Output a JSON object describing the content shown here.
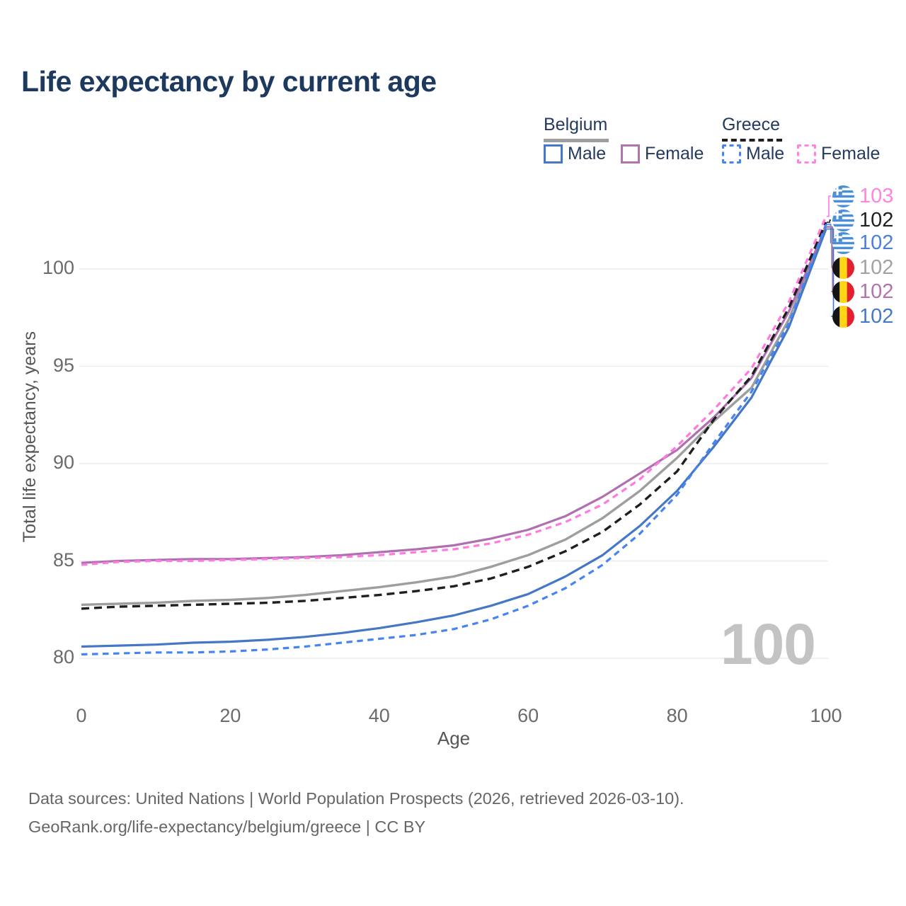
{
  "title": "Life expectancy by current age",
  "legend": {
    "groups": [
      {
        "label": "Belgium",
        "line_style": "solid",
        "color": "#9e9e9e"
      },
      {
        "label": "Greece",
        "line_style": "dashed",
        "color": "#1f1f1f"
      }
    ],
    "items": [
      {
        "label": "Male",
        "country": "Belgium",
        "color": "#4477c5",
        "dashed": false
      },
      {
        "label": "Female",
        "country": "Belgium",
        "color": "#b273ae",
        "dashed": false
      },
      {
        "label": "Male",
        "country": "Greece",
        "color": "#4584f2",
        "dashed": true
      },
      {
        "label": "Female",
        "country": "Greece",
        "color": "#ff85e0",
        "dashed": true
      }
    ]
  },
  "watermark_age": "100",
  "footer": {
    "line1": "Data sources: United Nations | World Population Prospects (2026, retrieved 2026-03-10).",
    "line2": "GeoRank.org/life-expectancy/belgium/greece | CC BY"
  },
  "chart_data": {
    "type": "line",
    "title": "Life expectancy by current age",
    "xlabel": "Age",
    "ylabel": "Total life expectancy, years",
    "x_ticks": [
      0,
      20,
      40,
      60,
      80,
      100
    ],
    "y_ticks": [
      80,
      85,
      90,
      95,
      100
    ],
    "xlim": [
      0,
      100
    ],
    "ylim": [
      79,
      103.5
    ],
    "grid": "horizontal",
    "legend_position": "top-right",
    "x": [
      0,
      5,
      10,
      15,
      20,
      25,
      30,
      35,
      40,
      45,
      50,
      55,
      60,
      65,
      70,
      75,
      80,
      85,
      90,
      95,
      100
    ],
    "series": [
      {
        "name": "Belgium",
        "country": "Belgium",
        "sex": "Total",
        "color": "#9e9e9e",
        "dashed": false,
        "values": [
          82.75,
          82.8,
          82.85,
          82.95,
          83.0,
          83.1,
          83.25,
          83.45,
          83.65,
          83.9,
          84.2,
          84.7,
          85.3,
          86.1,
          87.2,
          88.6,
          90.3,
          92.2,
          93.9,
          97.4,
          102.2
        ]
      },
      {
        "name": "Belgium Female",
        "country": "Belgium",
        "sex": "Female",
        "color": "#b06fb0",
        "dashed": false,
        "values": [
          84.9,
          85.0,
          85.05,
          85.1,
          85.1,
          85.15,
          85.2,
          85.3,
          85.45,
          85.6,
          85.8,
          86.15,
          86.6,
          87.3,
          88.3,
          89.5,
          90.7,
          92.4,
          94.4,
          97.8,
          102.15
        ]
      },
      {
        "name": "Belgium Male",
        "country": "Belgium",
        "sex": "Male",
        "color": "#4477c5",
        "dashed": false,
        "values": [
          80.6,
          80.65,
          80.7,
          80.8,
          80.85,
          80.95,
          81.1,
          81.3,
          81.55,
          81.85,
          82.2,
          82.7,
          83.3,
          84.2,
          85.3,
          86.8,
          88.6,
          90.9,
          93.4,
          97.0,
          102.05
        ]
      },
      {
        "name": "Greece",
        "country": "Greece",
        "sex": "Total",
        "color": "#1f1f1f",
        "dashed": true,
        "values": [
          82.55,
          82.65,
          82.7,
          82.75,
          82.8,
          82.85,
          82.95,
          83.1,
          83.25,
          83.45,
          83.7,
          84.1,
          84.7,
          85.5,
          86.5,
          87.9,
          89.6,
          92.3,
          94.5,
          98.0,
          102.4
        ]
      },
      {
        "name": "Greece Female",
        "country": "Greece",
        "sex": "Female",
        "color": "#ff7ade",
        "dashed": true,
        "values": [
          84.8,
          84.95,
          85.0,
          85.0,
          85.05,
          85.1,
          85.15,
          85.2,
          85.3,
          85.45,
          85.6,
          85.9,
          86.35,
          87.0,
          87.9,
          89.2,
          90.9,
          92.8,
          94.9,
          98.3,
          102.7
        ]
      },
      {
        "name": "Greece Male",
        "country": "Greece",
        "sex": "Male",
        "color": "#4584f2",
        "dashed": true,
        "values": [
          80.2,
          80.25,
          80.3,
          80.3,
          80.35,
          80.45,
          80.6,
          80.8,
          81.0,
          81.2,
          81.5,
          82.0,
          82.7,
          83.6,
          84.8,
          86.4,
          88.4,
          91.1,
          93.7,
          97.2,
          102.3
        ]
      }
    ],
    "end_labels": [
      {
        "series": "Greece Female",
        "flag": "greece",
        "text": "103",
        "color": "#ff85e0"
      },
      {
        "series": "Greece",
        "flag": "greece",
        "text": "102",
        "color": "#212121"
      },
      {
        "series": "Greece Male",
        "flag": "greece",
        "text": "102",
        "color": "#4c80d8"
      },
      {
        "series": "Belgium",
        "flag": "belgium",
        "text": "102",
        "color": "#a2a2a2"
      },
      {
        "series": "Belgium Female",
        "flag": "belgium",
        "text": "102",
        "color": "#b273ae"
      },
      {
        "series": "Belgium Male",
        "flag": "belgium",
        "text": "102",
        "color": "#4678c8"
      }
    ]
  }
}
